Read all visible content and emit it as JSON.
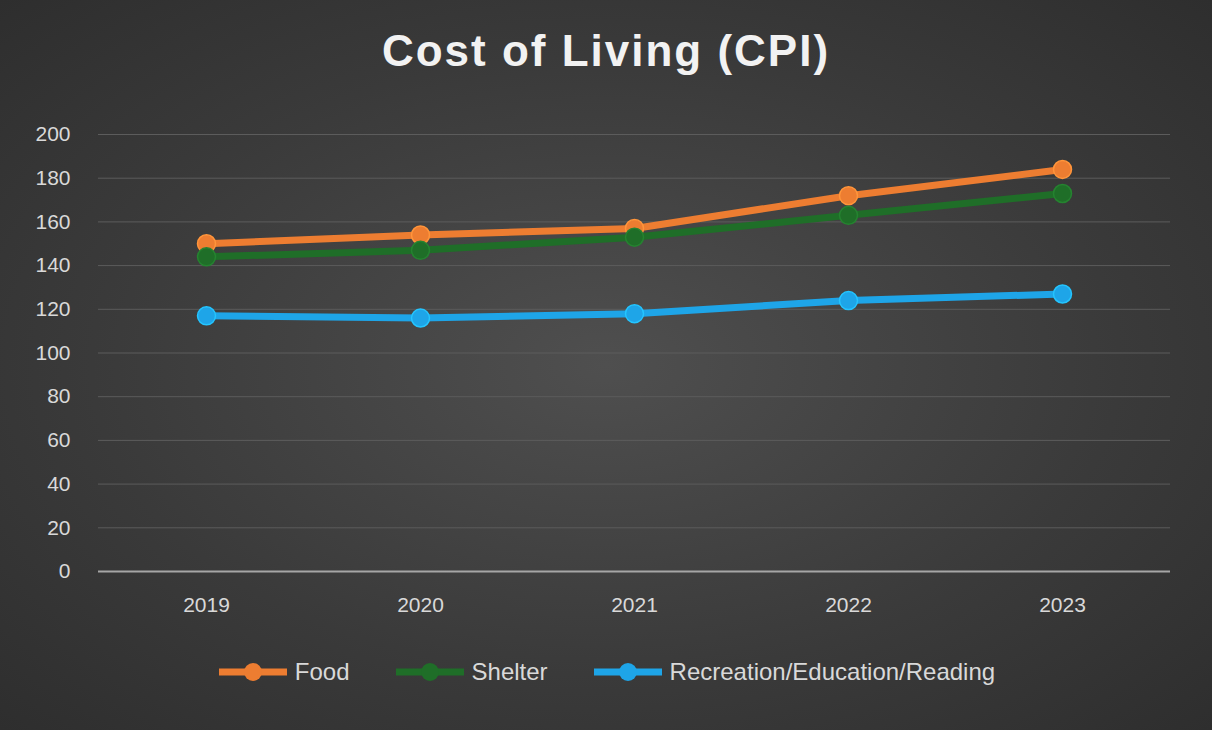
{
  "chart_data": {
    "type": "line",
    "title": "Cost of Living (CPI)",
    "categories": [
      "2019",
      "2020",
      "2021",
      "2022",
      "2023"
    ],
    "series": [
      {
        "name": "Food",
        "color": "#ed7d31",
        "values": [
          150,
          154,
          157,
          172,
          184
        ],
        "marker": "circle",
        "line_style": "solid"
      },
      {
        "name": "Shelter",
        "color": "#1f6e28",
        "values": [
          144,
          147,
          153,
          163,
          173
        ],
        "marker": "circle",
        "line_style": "solid"
      },
      {
        "name": "Recreation/Education/Reading",
        "color": "#1ea5e8",
        "values": [
          117,
          116,
          118,
          124,
          127
        ],
        "marker": "circle",
        "line_style": "solid"
      }
    ],
    "ylim": [
      0,
      200
    ],
    "yticks": [
      0,
      20,
      40,
      60,
      80,
      100,
      120,
      140,
      160,
      180,
      200
    ],
    "grid": true,
    "legend": "bottom"
  }
}
